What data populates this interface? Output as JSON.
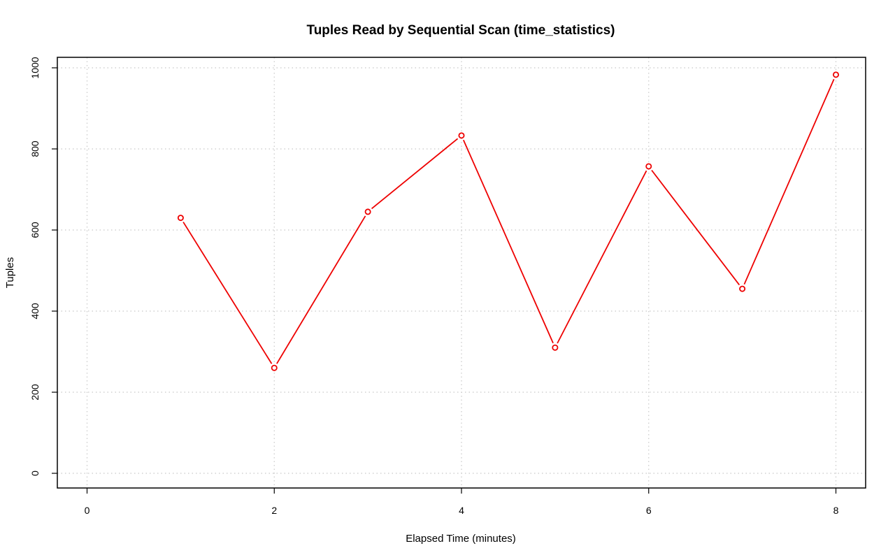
{
  "chart_data": {
    "type": "line",
    "title": "Tuples Read by Sequential Scan (time_statistics)",
    "xlabel": "Elapsed Time (minutes)",
    "ylabel": "Tuples",
    "xlim": [
      0,
      8
    ],
    "ylim": [
      0,
      1000
    ],
    "x_ticks": [
      0,
      2,
      4,
      6,
      8
    ],
    "y_ticks": [
      0,
      200,
      400,
      600,
      800,
      1000
    ],
    "grid": true,
    "legend": "none",
    "series": [
      {
        "color": "#ee0000",
        "x": [
          1,
          2,
          3,
          4,
          5,
          6,
          7,
          8
        ],
        "y": [
          630,
          260,
          645,
          833,
          310,
          757,
          455,
          983
        ]
      }
    ]
  }
}
